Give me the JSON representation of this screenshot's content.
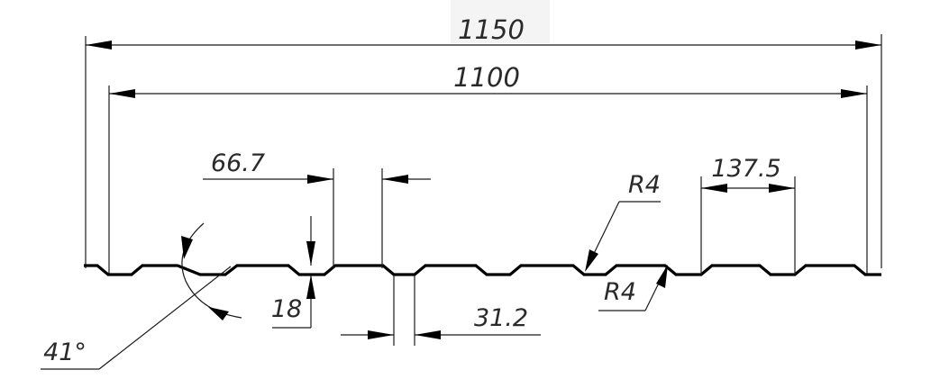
{
  "drawing": {
    "dimensions": {
      "overall_width": "1150",
      "useful_width": "1100",
      "rib_top_width": "66.7",
      "valley_width": "137.5",
      "profile_height": "18",
      "groove_width": "31.2",
      "bend_radius_top": "R4",
      "bend_radius_bottom": "R4",
      "side_angle": "41°"
    },
    "colors": {
      "line": "#000000",
      "text": "#2a2a2a",
      "background": "#ffffff"
    }
  }
}
